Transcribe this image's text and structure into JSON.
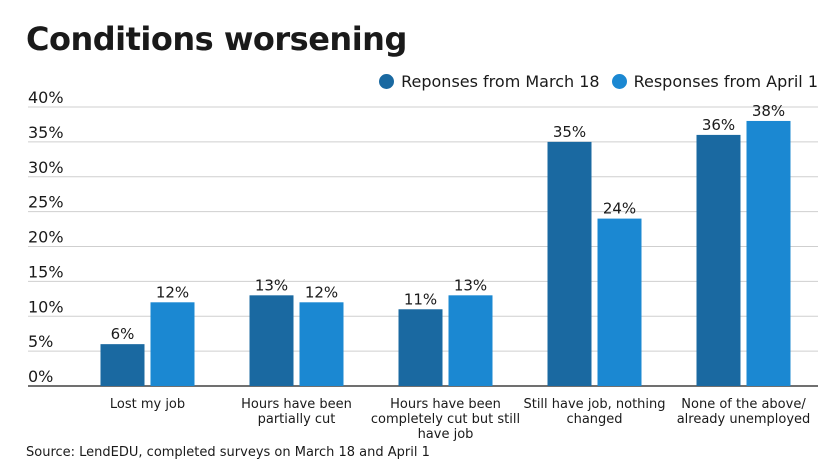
{
  "title": "Conditions worsening",
  "source": "Source: LendEDU, completed surveys on March 18 and April 1",
  "chart_data": {
    "type": "bar",
    "title": "Conditions worsening",
    "categories": [
      [
        "Lost my job"
      ],
      [
        "Hours have been",
        "partially cut"
      ],
      [
        "Hours have been",
        "completely cut but still",
        "have job"
      ],
      [
        "Still have job, nothing",
        "changed"
      ],
      [
        "None of the above/",
        "already unemployed"
      ]
    ],
    "series": [
      {
        "name": "Reponses from March 18",
        "color": "#1a69a1",
        "values": [
          6,
          13,
          11,
          35,
          36
        ]
      },
      {
        "name": "Responses from April 1",
        "color": "#1b88d2",
        "values": [
          12,
          12,
          13,
          24,
          38
        ]
      }
    ],
    "y_ticks": [
      "0%",
      "5%",
      "10%",
      "15%",
      "20%",
      "25%",
      "30%",
      "35%",
      "40%"
    ],
    "ylim": [
      0,
      40
    ],
    "unit_suffix": "%",
    "grid": true,
    "legend_position": "top-right"
  }
}
